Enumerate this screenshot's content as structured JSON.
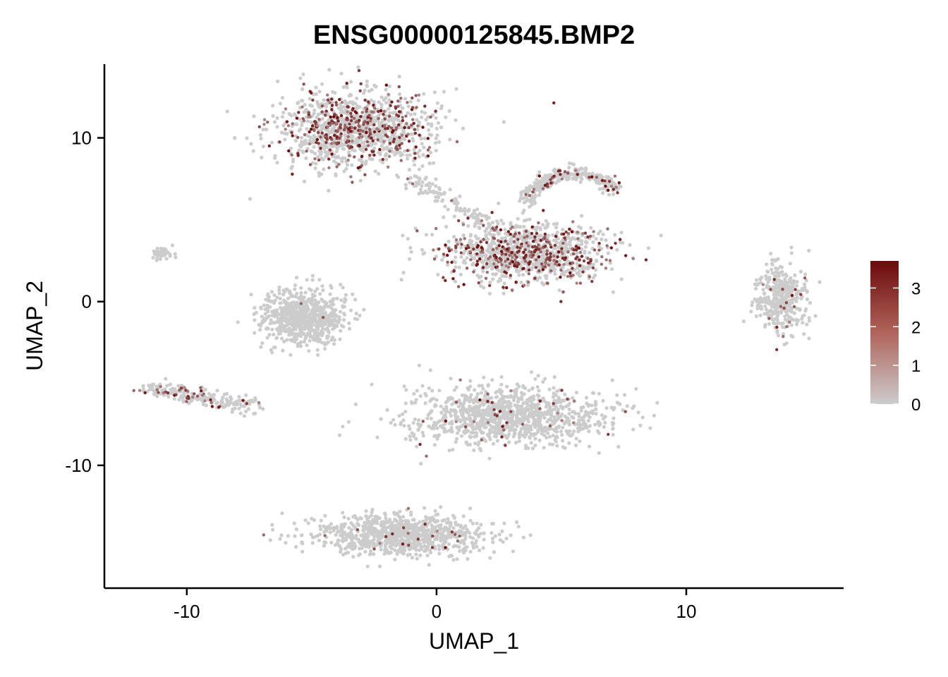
{
  "chart_data": {
    "type": "scatter",
    "title": "ENSG00000125845.BMP2",
    "xlabel": "UMAP_1",
    "ylabel": "UMAP_2",
    "xlim": [
      -13.3,
      16.3
    ],
    "ylim": [
      -17.5,
      14.5
    ],
    "xticks": [
      -10,
      0,
      10
    ],
    "yticks": [
      -10,
      0,
      10
    ],
    "grid": false,
    "legend_placement": "right",
    "color_scale": {
      "low_color": "#cccccc",
      "high_color": "#6b0a0a",
      "min": 0,
      "max": 3.7,
      "ticks": [
        0,
        1,
        2,
        3
      ]
    },
    "clusters": [
      {
        "id": "top-left",
        "shape": "blob",
        "center": [
          -3.3,
          10.5
        ],
        "spread": [
          2.8,
          2.2
        ],
        "expression": "high",
        "approx_cells": 1200
      },
      {
        "id": "center-right",
        "shape": "blob",
        "center": [
          3.5,
          3.0
        ],
        "spread": [
          3.0,
          1.6
        ],
        "expression": "high",
        "approx_cells": 1100
      },
      {
        "id": "top-right-arc",
        "shape": "arc",
        "center": [
          5.5,
          7.5
        ],
        "spread": [
          1.5,
          1.0
        ],
        "expression": "medium",
        "approx_cells": 300
      },
      {
        "id": "bridge",
        "shape": "path",
        "from": [
          -1.0,
          7.5
        ],
        "to": [
          2.5,
          4.5
        ],
        "expression": "low",
        "approx_cells": 120
      },
      {
        "id": "far-right",
        "shape": "blob",
        "center": [
          13.8,
          0.2
        ],
        "spread": [
          0.9,
          1.8
        ],
        "expression": "low",
        "approx_cells": 400
      },
      {
        "id": "center-left",
        "shape": "blob",
        "center": [
          -5.3,
          -1.0
        ],
        "spread": [
          1.5,
          1.6
        ],
        "expression": "none",
        "approx_cells": 700
      },
      {
        "id": "left-stripe",
        "shape": "path",
        "from": [
          -11.8,
          -5.2
        ],
        "to": [
          -7.2,
          -6.5
        ],
        "expression": "medium",
        "approx_cells": 220
      },
      {
        "id": "lower-middle",
        "shape": "blob",
        "center": [
          2.8,
          -7.0
        ],
        "spread": [
          3.5,
          1.6
        ],
        "expression": "low",
        "approx_cells": 1100
      },
      {
        "id": "bottom",
        "shape": "blob",
        "center": [
          -1.5,
          -14.2
        ],
        "spread": [
          3.2,
          1.1
        ],
        "expression": "low",
        "approx_cells": 900
      },
      {
        "id": "small-top-left",
        "shape": "blob",
        "center": [
          -11.0,
          2.9
        ],
        "spread": [
          0.4,
          0.3
        ],
        "expression": "low",
        "approx_cells": 40
      }
    ]
  }
}
